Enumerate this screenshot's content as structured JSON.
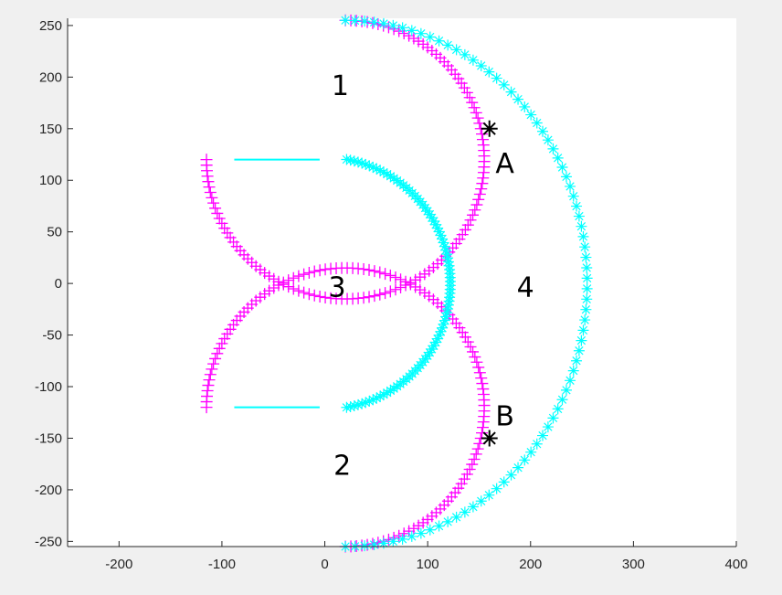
{
  "chart_data": {
    "type": "scatter",
    "title": "",
    "xlabel": "",
    "ylabel": "",
    "xlim": [
      -250,
      400
    ],
    "ylim": [
      -255,
      257
    ],
    "x_ticks": [
      -200,
      -100,
      0,
      100,
      200,
      300,
      400
    ],
    "y_ticks": [
      -250,
      -200,
      -150,
      -100,
      -50,
      0,
      50,
      100,
      150,
      200,
      250
    ],
    "grid": false,
    "colors": {
      "magenta": "#ff00ff",
      "cyan": "#00ffff",
      "black": "#000000"
    },
    "series": [
      {
        "marker": "+",
        "color": "#ff00ff",
        "shape": "arc",
        "center": [
          20,
          120
        ],
        "radius": 135,
        "angle_start_deg": 180,
        "angle_end_deg": 450,
        "points": 120
      },
      {
        "marker": "+",
        "color": "#ff00ff",
        "shape": "arc",
        "center": [
          20,
          -120
        ],
        "radius": 135,
        "angle_start_deg": -90,
        "angle_end_deg": 180,
        "points": 120
      },
      {
        "marker": "*",
        "color": "#00ffff",
        "shape": "arc",
        "center": [
          0,
          0
        ],
        "radius": 122,
        "angle_start_deg": -80,
        "angle_end_deg": 80,
        "points": 90
      },
      {
        "marker": "*",
        "color": "#00ffff",
        "shape": "ellipse-arc",
        "center": [
          20,
          0
        ],
        "rx": 235,
        "ry": 255,
        "angle_start_deg": -90,
        "angle_end_deg": 90,
        "points": 80
      },
      {
        "marker": "line",
        "color": "#00ffff",
        "shape": "segment",
        "points_xy": [
          [
            -88,
            120
          ],
          [
            -5,
            120
          ]
        ]
      },
      {
        "marker": "line",
        "color": "#00ffff",
        "shape": "segment",
        "points_xy": [
          [
            -88,
            -120
          ],
          [
            -5,
            -120
          ]
        ]
      },
      {
        "marker": "*",
        "color": "#000000",
        "shape": "points",
        "points_xy": [
          [
            160,
            150
          ],
          [
            160,
            -150
          ]
        ]
      }
    ],
    "annotations": [
      {
        "text": "1",
        "x": 15,
        "y": 190
      },
      {
        "text": "2",
        "x": 17,
        "y": -178
      },
      {
        "text": "3",
        "x": 12,
        "y": -5
      },
      {
        "text": "4",
        "x": 195,
        "y": -5
      },
      {
        "text": "A",
        "x": 175,
        "y": 115
      },
      {
        "text": "B",
        "x": 175,
        "y": -130
      }
    ]
  }
}
